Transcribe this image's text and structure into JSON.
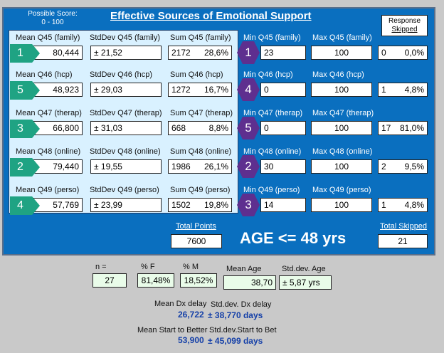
{
  "header": {
    "possible_score_line1": "Possible Score:",
    "possible_score_line2": "0 - 100",
    "title": "Effective Sources of Emotional Support",
    "response_line1": "Response",
    "response_line2": "Skipped"
  },
  "rows": [
    {
      "mean_label": "Mean Q45 (family)",
      "std_label": "StdDev Q45 (family)",
      "sum_label": "Sum Q45 (family)",
      "min_label": "Min Q45 (family)",
      "max_label": "Max Q45 (family)",
      "rank_mean": "1",
      "mean": "80,444",
      "std": "± 21,52",
      "sum": "2172",
      "sum_pct": "28,6%",
      "rank_min": "1",
      "min": "23",
      "max": "100",
      "skipped": "0",
      "skipped_pct": "0,0%"
    },
    {
      "mean_label": "Mean Q46 (hcp)",
      "std_label": "StdDev Q46 (hcp)",
      "sum_label": "Sum Q46 (hcp)",
      "min_label": "Min Q46 (hcp)",
      "max_label": "Max Q46 (hcp)",
      "rank_mean": "5",
      "mean": "48,923",
      "std": "± 29,03",
      "sum": "1272",
      "sum_pct": "16,7%",
      "rank_min": "4",
      "min": "0",
      "max": "100",
      "skipped": "1",
      "skipped_pct": "4,8%"
    },
    {
      "mean_label": "Mean Q47 (therap)",
      "std_label": "StdDev Q47 (therap)",
      "sum_label": "Sum Q47 (therap)",
      "min_label": "Min Q47 (therap)",
      "max_label": "Max Q47 (therap)",
      "rank_mean": "3",
      "mean": "66,800",
      "std": "± 31,03",
      "sum": "668",
      "sum_pct": "8,8%",
      "rank_min": "5",
      "min": "0",
      "max": "100",
      "skipped": "17",
      "skipped_pct": "81,0%"
    },
    {
      "mean_label": "Mean Q48 (online)",
      "std_label": "StdDev Q48 (online)",
      "sum_label": "Sum Q48 (online)",
      "min_label": "Min Q48 (online)",
      "max_label": "Max Q48 (online)",
      "rank_mean": "2",
      "mean": "79,440",
      "std": "± 19,55",
      "sum": "1986",
      "sum_pct": "26,1%",
      "rank_min": "2",
      "min": "30",
      "max": "100",
      "skipped": "2",
      "skipped_pct": "9,5%"
    },
    {
      "mean_label": "Mean Q49 (perso)",
      "std_label": "StdDev Q49 (perso)",
      "sum_label": "Sum Q49 (perso)",
      "min_label": "Min Q49 (perso)",
      "max_label": "Max Q49 (perso)",
      "rank_mean": "4",
      "mean": "57,769",
      "std": "± 23,99",
      "sum": "1502",
      "sum_pct": "19,8%",
      "rank_min": "3",
      "min": "14",
      "max": "100",
      "skipped": "1",
      "skipped_pct": "4,8%"
    }
  ],
  "totals": {
    "points_label": "Total Points",
    "points": "7600",
    "age_text": "AGE <= 48 yrs",
    "skipped_label": "Total Skipped",
    "skipped": "21"
  },
  "stats": {
    "n_label": "n =",
    "n": "27",
    "pf_label": "% F",
    "pf": "81,48%",
    "pm_label": "% M",
    "pm": "18,52%",
    "mean_age_label": "Mean Age",
    "mean_age": "38,70",
    "sd_age_label": "Std.dev. Age",
    "sd_age": "± 5,87 yrs"
  },
  "delay": {
    "dx_label": "Mean Dx delay",
    "dx_sd_label": "Std.dev. Dx delay",
    "dx_value": "26,722",
    "dx_sd_value": "± 38,770 days",
    "stb_label": "Mean Start to Better",
    "stb_sd_label": "Std.dev.Start to Bet",
    "stb_value": "53,900",
    "stb_sd_value": "± 45,099 days"
  }
}
